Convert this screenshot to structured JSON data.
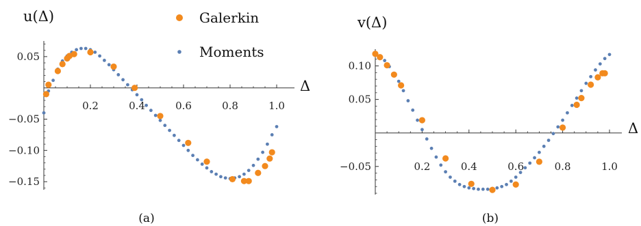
{
  "legend": {
    "galerkin": "Galerkin",
    "moments": "Moments"
  },
  "colors": {
    "galerkin": "#f28a1e",
    "moments": "#5b7fb3",
    "axis": "#333333"
  },
  "chart_data": [
    {
      "type": "scatter",
      "panel_label": "(a)",
      "ylabel": "u(Δ)",
      "xlabel": "Δ",
      "xlim": [
        0,
        1
      ],
      "ylim": [
        -0.163,
        0.075
      ],
      "xticks": [
        {
          "v": 0.2,
          "label": "0.2"
        },
        {
          "v": 0.4,
          "label": "0.4"
        },
        {
          "v": 0.6,
          "label": "0.6"
        },
        {
          "v": 0.8,
          "label": "0.8"
        },
        {
          "v": 1.0,
          "label": "1.0"
        }
      ],
      "yticks": [
        {
          "v": 0.05,
          "label": "0.05"
        },
        {
          "v": -0.05,
          "label": "−0.05"
        },
        {
          "v": -0.1,
          "label": "−0.10"
        },
        {
          "v": -0.15,
          "label": "−0.15"
        }
      ],
      "series": [
        {
          "name": "Galerkin",
          "points": [
            [
              0.01,
              -0.01
            ],
            [
              0.02,
              0.005
            ],
            [
              0.06,
              0.027
            ],
            [
              0.08,
              0.038
            ],
            [
              0.1,
              0.047
            ],
            [
              0.11,
              0.051
            ],
            [
              0.13,
              0.054
            ],
            [
              0.2,
              0.057
            ],
            [
              0.3,
              0.034
            ],
            [
              0.39,
              0.0
            ],
            [
              0.5,
              -0.045
            ],
            [
              0.62,
              -0.088
            ],
            [
              0.7,
              -0.118
            ],
            [
              0.81,
              -0.146
            ],
            [
              0.86,
              -0.149
            ],
            [
              0.88,
              -0.149
            ],
            [
              0.92,
              -0.136
            ],
            [
              0.95,
              -0.125
            ],
            [
              0.97,
              -0.113
            ],
            [
              0.98,
              -0.103
            ]
          ]
        },
        {
          "name": "Moments",
          "points": [
            [
              0.0,
              -0.04
            ],
            [
              0.02,
              -0.005
            ],
            [
              0.04,
              0.012
            ],
            [
              0.06,
              0.03
            ],
            [
              0.08,
              0.043
            ],
            [
              0.1,
              0.051
            ],
            [
              0.12,
              0.057
            ],
            [
              0.14,
              0.061
            ],
            [
              0.16,
              0.063
            ],
            [
              0.18,
              0.063
            ],
            [
              0.2,
              0.061
            ],
            [
              0.22,
              0.057
            ],
            [
              0.24,
              0.051
            ],
            [
              0.26,
              0.044
            ],
            [
              0.28,
              0.037
            ],
            [
              0.3,
              0.029
            ],
            [
              0.32,
              0.021
            ],
            [
              0.34,
              0.013
            ],
            [
              0.36,
              0.005
            ],
            [
              0.38,
              -0.003
            ],
            [
              0.4,
              -0.011
            ],
            [
              0.42,
              -0.019
            ],
            [
              0.44,
              -0.028
            ],
            [
              0.46,
              -0.036
            ],
            [
              0.48,
              -0.044
            ],
            [
              0.5,
              -0.052
            ],
            [
              0.52,
              -0.06
            ],
            [
              0.54,
              -0.068
            ],
            [
              0.56,
              -0.076
            ],
            [
              0.58,
              -0.084
            ],
            [
              0.6,
              -0.092
            ],
            [
              0.62,
              -0.1
            ],
            [
              0.64,
              -0.108
            ],
            [
              0.66,
              -0.115
            ],
            [
              0.68,
              -0.122
            ],
            [
              0.7,
              -0.128
            ],
            [
              0.72,
              -0.134
            ],
            [
              0.74,
              -0.138
            ],
            [
              0.76,
              -0.142
            ],
            [
              0.78,
              -0.144
            ],
            [
              0.8,
              -0.145
            ],
            [
              0.82,
              -0.144
            ],
            [
              0.84,
              -0.142
            ],
            [
              0.86,
              -0.138
            ],
            [
              0.88,
              -0.132
            ],
            [
              0.9,
              -0.124
            ],
            [
              0.92,
              -0.114
            ],
            [
              0.94,
              -0.103
            ],
            [
              0.96,
              -0.09
            ],
            [
              0.98,
              -0.075
            ],
            [
              1.0,
              -0.062
            ]
          ]
        }
      ]
    },
    {
      "type": "scatter",
      "panel_label": "(b)",
      "ylabel": "v(Δ)",
      "xlabel": "Δ",
      "xlim": [
        0,
        1
      ],
      "ylim": [
        -0.092,
        0.125
      ],
      "xticks": [
        {
          "v": 0.2,
          "label": "0.2"
        },
        {
          "v": 0.4,
          "label": "0.4"
        },
        {
          "v": 0.6,
          "label": "0.6"
        },
        {
          "v": 0.8,
          "label": "0.8"
        },
        {
          "v": 1.0,
          "label": "1.0"
        }
      ],
      "yticks": [
        {
          "v": 0.1,
          "label": "0.10"
        },
        {
          "v": 0.05,
          "label": "0.05"
        },
        {
          "v": -0.05,
          "label": "−0.05"
        }
      ],
      "series": [
        {
          "name": "Galerkin",
          "points": [
            [
              0.0,
              0.118
            ],
            [
              0.02,
              0.113
            ],
            [
              0.05,
              0.101
            ],
            [
              0.08,
              0.087
            ],
            [
              0.11,
              0.071
            ],
            [
              0.2,
              0.019
            ],
            [
              0.3,
              -0.038
            ],
            [
              0.41,
              -0.076
            ],
            [
              0.5,
              -0.085
            ],
            [
              0.6,
              -0.077
            ],
            [
              0.7,
              -0.043
            ],
            [
              0.8,
              0.008
            ],
            [
              0.86,
              0.042
            ],
            [
              0.88,
              0.052
            ],
            [
              0.92,
              0.072
            ],
            [
              0.95,
              0.083
            ],
            [
              0.97,
              0.089
            ],
            [
              0.98,
              0.089
            ]
          ]
        },
        {
          "name": "Moments",
          "points": [
            [
              0.0,
              0.118
            ],
            [
              0.02,
              0.115
            ],
            [
              0.04,
              0.108
            ],
            [
              0.06,
              0.099
            ],
            [
              0.08,
              0.089
            ],
            [
              0.1,
              0.077
            ],
            [
              0.12,
              0.063
            ],
            [
              0.14,
              0.048
            ],
            [
              0.16,
              0.034
            ],
            [
              0.18,
              0.019
            ],
            [
              0.2,
              0.005
            ],
            [
              0.22,
              -0.009
            ],
            [
              0.24,
              -0.023
            ],
            [
              0.26,
              -0.036
            ],
            [
              0.28,
              -0.048
            ],
            [
              0.3,
              -0.058
            ],
            [
              0.32,
              -0.066
            ],
            [
              0.34,
              -0.072
            ],
            [
              0.36,
              -0.077
            ],
            [
              0.38,
              -0.08
            ],
            [
              0.4,
              -0.082
            ],
            [
              0.42,
              -0.083
            ],
            [
              0.44,
              -0.084
            ],
            [
              0.46,
              -0.084
            ],
            [
              0.48,
              -0.084
            ],
            [
              0.5,
              -0.083
            ],
            [
              0.52,
              -0.082
            ],
            [
              0.54,
              -0.08
            ],
            [
              0.56,
              -0.077
            ],
            [
              0.58,
              -0.072
            ],
            [
              0.6,
              -0.066
            ],
            [
              0.62,
              -0.059
            ],
            [
              0.64,
              -0.052
            ],
            [
              0.66,
              -0.045
            ],
            [
              0.68,
              -0.037
            ],
            [
              0.7,
              -0.029
            ],
            [
              0.72,
              -0.02
            ],
            [
              0.74,
              -0.011
            ],
            [
              0.76,
              -0.001
            ],
            [
              0.78,
              0.009
            ],
            [
              0.8,
              0.019
            ],
            [
              0.82,
              0.03
            ],
            [
              0.84,
              0.041
            ],
            [
              0.86,
              0.052
            ],
            [
              0.88,
              0.063
            ],
            [
              0.9,
              0.074
            ],
            [
              0.92,
              0.084
            ],
            [
              0.94,
              0.094
            ],
            [
              0.96,
              0.103
            ],
            [
              0.98,
              0.111
            ],
            [
              1.0,
              0.117
            ]
          ]
        }
      ]
    }
  ]
}
